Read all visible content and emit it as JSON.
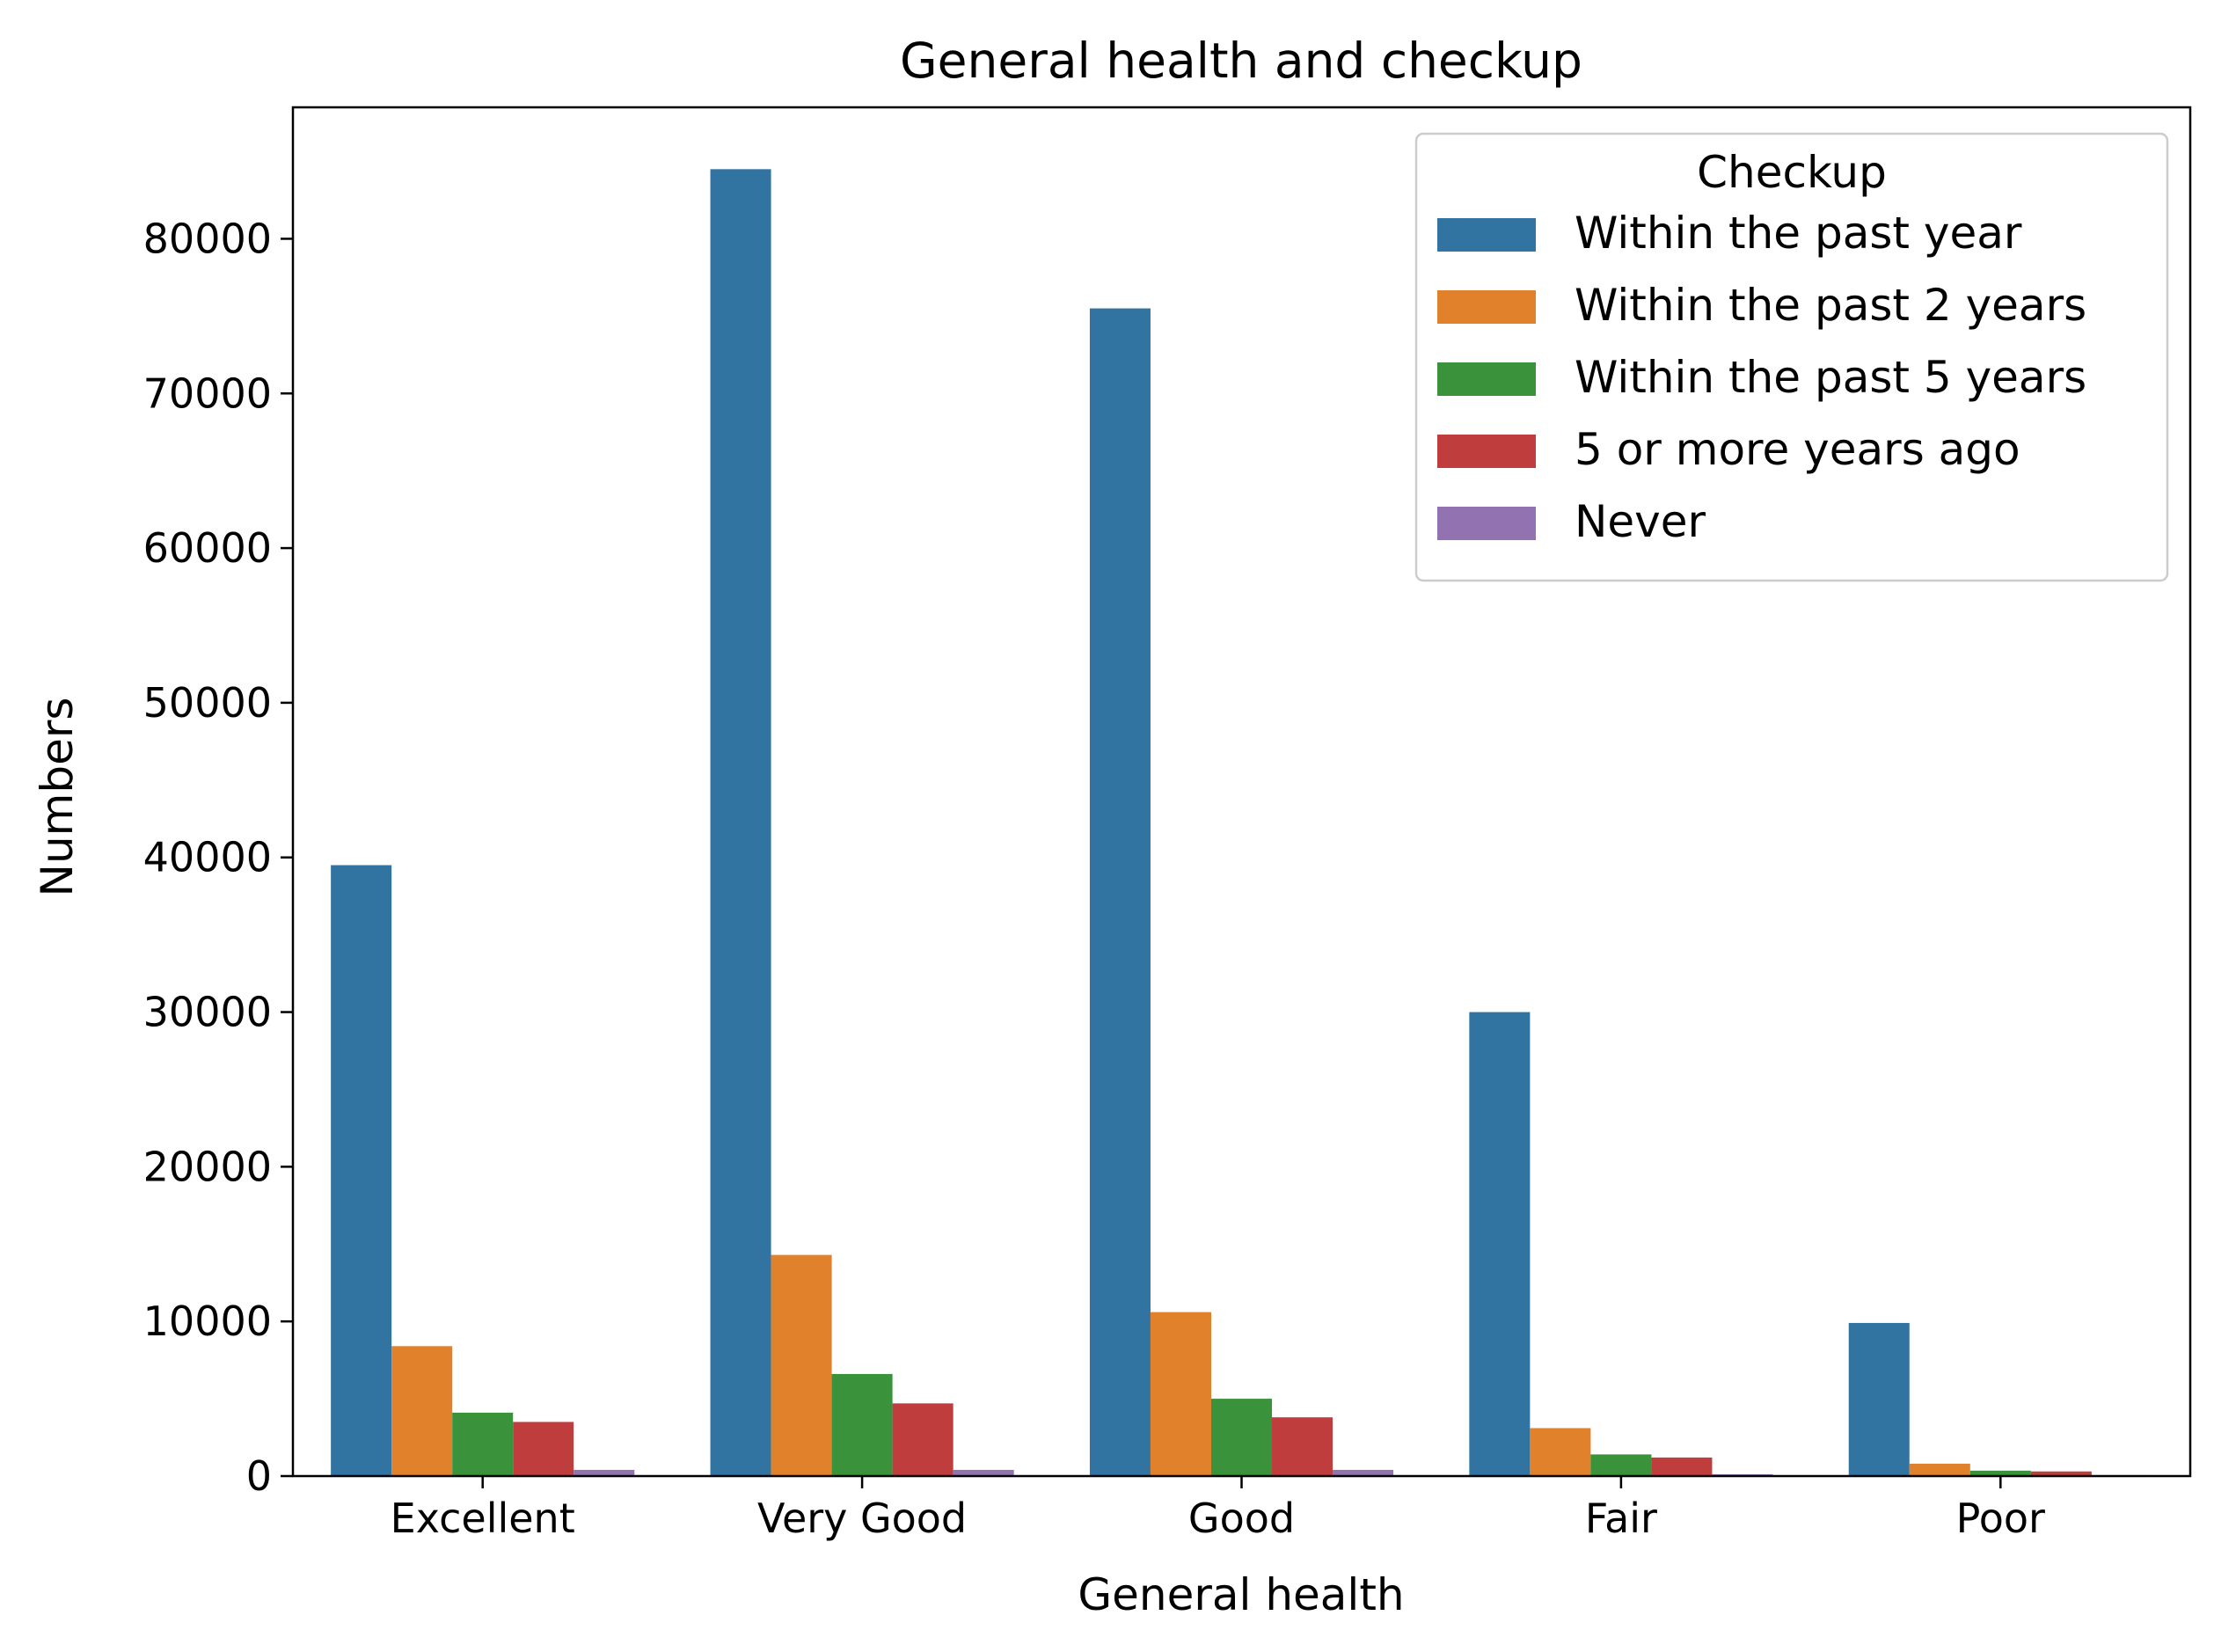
{
  "chart_data": {
    "type": "bar",
    "title": "General health and checkup",
    "xlabel": "General health",
    "ylabel": "Numbers",
    "categories": [
      "Excellent",
      "Very Good",
      "Good",
      "Fair",
      "Poor"
    ],
    "ylim": [
      0,
      88500
    ],
    "yticks": [
      0,
      10000,
      20000,
      30000,
      40000,
      50000,
      60000,
      70000,
      80000
    ],
    "legend": {
      "title": "Checkup",
      "placement": "top-right"
    },
    "grid": false,
    "series": [
      {
        "name": "Within the past year",
        "color": "#3274a1",
        "values": [
          39500,
          84500,
          75500,
          30000,
          9900
        ]
      },
      {
        "name": "Within the past 2 years",
        "color": "#e1812c",
        "values": [
          8400,
          14300,
          10600,
          3100,
          800
        ]
      },
      {
        "name": "Within the past 5 years",
        "color": "#3a923a",
        "values": [
          4100,
          6600,
          5000,
          1400,
          350
        ]
      },
      {
        "name": "5 or more years ago",
        "color": "#c03d3e",
        "values": [
          3500,
          4700,
          3800,
          1200,
          300
        ]
      },
      {
        "name": "Never",
        "color": "#9372b2",
        "values": [
          400,
          400,
          400,
          120,
          60
        ]
      }
    ]
  }
}
